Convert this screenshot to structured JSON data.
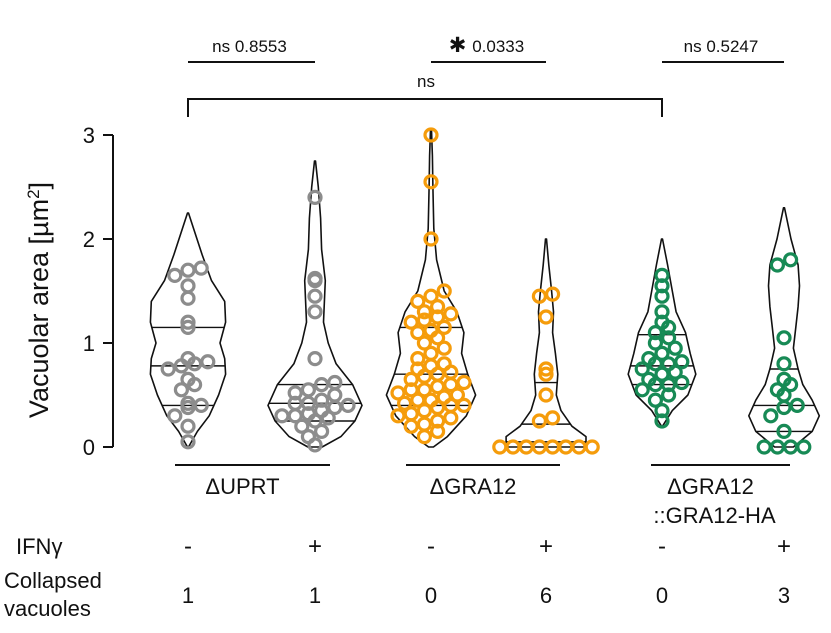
{
  "chart_data": {
    "type": "violin",
    "ylabel": "Vacuolar area [µm",
    "ylabel_sup": "2",
    "ylabel_end": "]",
    "ylim": [
      0,
      3
    ],
    "yticks": [
      "0",
      "1",
      "2",
      "3"
    ],
    "ytick_values": [
      0,
      1,
      2,
      3
    ],
    "colors": {
      "UPRT": "#8c8c8c",
      "GRA12": "#f59c0b",
      "GRA12HA": "#178a55",
      "line": "#111111"
    },
    "groups": [
      {
        "label": "ΔUPRT",
        "label2": "",
        "conditions": [
          {
            "ifn": "-",
            "collapsed": "1",
            "color_key": "UPRT",
            "range": [
              0,
              2.25
            ],
            "quartiles": [
              0.4,
              0.78,
              1.15
            ],
            "profile": [
              [
                0,
                0.01
              ],
              [
                0.15,
                0.2
              ],
              [
                0.3,
                0.45
              ],
              [
                0.5,
                0.65
              ],
              [
                0.7,
                0.8
              ],
              [
                0.85,
                0.78
              ],
              [
                1.0,
                0.68
              ],
              [
                1.2,
                0.8
              ],
              [
                1.4,
                0.78
              ],
              [
                1.6,
                0.5
              ],
              [
                1.85,
                0.3
              ],
              [
                2.1,
                0.12
              ],
              [
                2.25,
                0.01
              ]
            ],
            "values": [
              0.05,
              0.2,
              0.3,
              0.38,
              0.4,
              0.42,
              0.55,
              0.6,
              0.65,
              0.75,
              0.78,
              0.8,
              0.82,
              0.85,
              1.15,
              1.2,
              1.43,
              1.55,
              1.65,
              1.7,
              1.72
            ]
          },
          {
            "ifn": "+",
            "collapsed": "1",
            "color_key": "UPRT",
            "range": [
              0,
              2.75
            ],
            "quartiles": [
              0.25,
              0.42,
              0.6
            ],
            "profile": [
              [
                0,
                0.15
              ],
              [
                0.1,
                0.55
              ],
              [
                0.25,
                0.85
              ],
              [
                0.4,
                1.0
              ],
              [
                0.6,
                0.8
              ],
              [
                0.8,
                0.45
              ],
              [
                1.0,
                0.28
              ],
              [
                1.2,
                0.18
              ],
              [
                1.4,
                0.2
              ],
              [
                1.6,
                0.22
              ],
              [
                1.9,
                0.14
              ],
              [
                2.2,
                0.12
              ],
              [
                2.5,
                0.07
              ],
              [
                2.75,
                0.01
              ]
            ],
            "values": [
              0.02,
              0.1,
              0.15,
              0.2,
              0.25,
              0.28,
              0.3,
              0.3,
              0.32,
              0.35,
              0.38,
              0.4,
              0.42,
              0.42,
              0.45,
              0.5,
              0.52,
              0.55,
              0.6,
              0.62,
              0.85,
              1.3,
              1.45,
              1.6,
              1.62,
              2.4
            ]
          }
        ]
      },
      {
        "label": "ΔGRA12",
        "label2": "",
        "conditions": [
          {
            "ifn": "-",
            "collapsed": "0",
            "color_key": "GRA12",
            "range": [
              0,
              3.05
            ],
            "quartiles": [
              0.4,
              0.7,
              1.15
            ],
            "profile": [
              [
                0,
                0.05
              ],
              [
                0.1,
                0.35
              ],
              [
                0.3,
                0.75
              ],
              [
                0.5,
                0.95
              ],
              [
                0.7,
                0.78
              ],
              [
                0.9,
                0.65
              ],
              [
                1.1,
                0.7
              ],
              [
                1.3,
                0.55
              ],
              [
                1.5,
                0.28
              ],
              [
                1.8,
                0.12
              ],
              [
                2.1,
                0.06
              ],
              [
                2.5,
                0.04
              ],
              [
                2.8,
                0.03
              ],
              [
                3.05,
                0.01
              ]
            ],
            "values": [
              0.1,
              0.15,
              0.2,
              0.22,
              0.25,
              0.28,
              0.3,
              0.32,
              0.35,
              0.38,
              0.4,
              0.4,
              0.42,
              0.45,
              0.45,
              0.48,
              0.5,
              0.52,
              0.55,
              0.55,
              0.58,
              0.6,
              0.62,
              0.65,
              0.68,
              0.7,
              0.72,
              0.75,
              0.78,
              0.8,
              0.85,
              0.9,
              0.95,
              1.0,
              1.05,
              1.1,
              1.12,
              1.15,
              1.2,
              1.22,
              1.25,
              1.28,
              1.3,
              1.35,
              1.4,
              1.45,
              1.5,
              2.0,
              2.55,
              3.0
            ]
          },
          {
            "ifn": "+",
            "collapsed": "6",
            "color_key": "GRA12",
            "range": [
              0,
              2.0
            ],
            "quartiles": [
              0.05,
              0.22,
              0.62
            ],
            "profile": [
              [
                0,
                0.85
              ],
              [
                0.1,
                0.85
              ],
              [
                0.2,
                0.55
              ],
              [
                0.35,
                0.32
              ],
              [
                0.5,
                0.22
              ],
              [
                0.7,
                0.25
              ],
              [
                0.9,
                0.2
              ],
              [
                1.1,
                0.14
              ],
              [
                1.3,
                0.16
              ],
              [
                1.5,
                0.12
              ],
              [
                1.75,
                0.06
              ],
              [
                2.0,
                0.01
              ]
            ],
            "values": [
              0.0,
              0.0,
              0.0,
              0.0,
              0.0,
              0.0,
              0.0,
              0.0,
              0.25,
              0.28,
              0.5,
              0.7,
              0.75,
              1.25,
              1.45,
              1.47
            ]
          }
        ]
      },
      {
        "label": "ΔGRA12",
        "label2": "::GRA12-HA",
        "conditions": [
          {
            "ifn": "-",
            "collapsed": "0",
            "color_key": "GRA12HA",
            "range": [
              0.2,
              2.0
            ],
            "quartiles": [
              0.6,
              0.78,
              1.08
            ],
            "profile": [
              [
                0.2,
                0.01
              ],
              [
                0.35,
                0.22
              ],
              [
                0.5,
                0.55
              ],
              [
                0.7,
                0.72
              ],
              [
                0.9,
                0.6
              ],
              [
                1.1,
                0.5
              ],
              [
                1.3,
                0.3
              ],
              [
                1.5,
                0.22
              ],
              [
                1.75,
                0.12
              ],
              [
                2.0,
                0.01
              ]
            ],
            "values": [
              0.25,
              0.35,
              0.45,
              0.5,
              0.55,
              0.6,
              0.6,
              0.62,
              0.65,
              0.7,
              0.72,
              0.75,
              0.8,
              0.8,
              0.82,
              0.85,
              0.9,
              0.95,
              1.0,
              1.05,
              1.1,
              1.15,
              1.2,
              1.3,
              1.45,
              1.55,
              1.65
            ]
          },
          {
            "ifn": "+",
            "collapsed": "3",
            "color_key": "GRA12HA",
            "range": [
              0,
              2.3
            ],
            "quartiles": [
              0.15,
              0.4,
              0.75
            ],
            "profile": [
              [
                0,
                0.2
              ],
              [
                0.15,
                0.6
              ],
              [
                0.3,
                0.75
              ],
              [
                0.45,
                0.6
              ],
              [
                0.6,
                0.4
              ],
              [
                0.75,
                0.3
              ],
              [
                0.95,
                0.2
              ],
              [
                1.15,
                0.25
              ],
              [
                1.35,
                0.3
              ],
              [
                1.55,
                0.33
              ],
              [
                1.75,
                0.3
              ],
              [
                2.0,
                0.15
              ],
              [
                2.3,
                0.01
              ]
            ],
            "values": [
              0.0,
              0.0,
              0.0,
              0.0,
              0.15,
              0.3,
              0.38,
              0.4,
              0.5,
              0.55,
              0.6,
              0.65,
              0.8,
              1.05,
              1.75,
              1.8
            ]
          }
        ]
      }
    ],
    "comparisons": [
      {
        "star": "",
        "label": "ns 0.8553"
      },
      {
        "star": "✱",
        "label": "0.0333"
      },
      {
        "star": "",
        "label": "ns 0.5247"
      }
    ],
    "overall_comparison": "ns",
    "row_labels": {
      "ifn": "IFNγ",
      "collapsed_line1": "Collapsed",
      "collapsed_line2": "vacuoles"
    }
  }
}
